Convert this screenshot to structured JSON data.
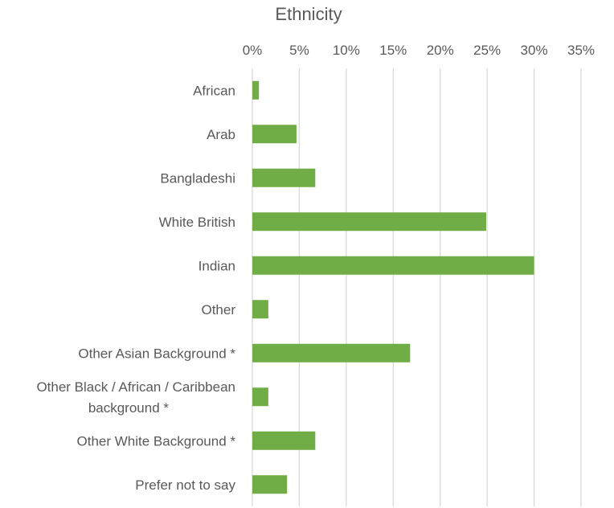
{
  "chart_data": {
    "type": "bar",
    "orientation": "horizontal",
    "title": "Ethnicity",
    "xlabel": "",
    "ylabel": "",
    "categories": [
      "African",
      "Arab",
      "Bangladeshi",
      "White British",
      "Indian",
      "Other",
      "Other Asian Background *",
      "Other Black / African / Caribbean background *",
      "Other White Background *",
      "Prefer not to say"
    ],
    "series": [
      {
        "values": [
          0.7,
          4.7,
          6.7,
          24.9,
          30.0,
          1.7,
          16.8,
          1.7,
          6.7,
          3.7
        ]
      }
    ],
    "xlim": [
      0,
      35
    ],
    "x_ticks": [
      0,
      5,
      10,
      15,
      20,
      25,
      30,
      35
    ],
    "x_tick_labels": [
      "0%",
      "5%",
      "10%",
      "15%",
      "20%",
      "25%",
      "30%",
      "35%"
    ],
    "x_axis_position": "top",
    "grid": true,
    "legend": "none",
    "bar_color": "#70ad47",
    "grid_color": "#d9d9d9",
    "text_color": "#595959"
  }
}
